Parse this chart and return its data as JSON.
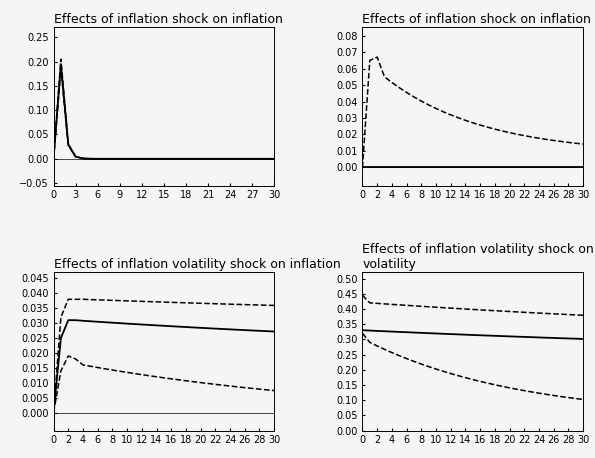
{
  "titles": [
    "Effects of inflation shock on inflation",
    "Effects of inflation shock on inflation volatili...",
    "Effects of inflation volatility shock on inflation",
    "Effects of inflation volatility shock on inflati-\nvolatility"
  ],
  "n_steps": 31,
  "subplot1": {
    "ylim": [
      -0.055,
      0.27
    ],
    "yticks": [
      -0.05,
      0,
      0.05,
      0.1,
      0.15,
      0.2,
      0.25
    ],
    "xticks": [
      0,
      3,
      6,
      9,
      12,
      15,
      18,
      21,
      24,
      27,
      30
    ]
  },
  "subplot2": {
    "ylim": [
      -0.011,
      0.085
    ],
    "yticks": [
      0,
      0.01,
      0.02,
      0.03,
      0.04,
      0.05,
      0.06,
      0.07,
      0.08
    ],
    "xticks": [
      0,
      2,
      4,
      6,
      8,
      10,
      12,
      14,
      16,
      18,
      20,
      22,
      24,
      26,
      28,
      30
    ]
  },
  "subplot3": {
    "ylim": [
      -0.006,
      0.047
    ],
    "yticks": [
      0,
      0.005,
      0.01,
      0.015,
      0.02,
      0.025,
      0.03,
      0.035,
      0.04,
      0.045
    ],
    "xticks": [
      0,
      2,
      4,
      6,
      8,
      10,
      12,
      14,
      16,
      18,
      20,
      22,
      24,
      26,
      28,
      30
    ]
  },
  "subplot4": {
    "ylim": [
      0,
      0.52
    ],
    "yticks": [
      0,
      0.05,
      0.1,
      0.15,
      0.2,
      0.25,
      0.3,
      0.35,
      0.4,
      0.45,
      0.5
    ],
    "xticks": [
      0,
      2,
      4,
      6,
      8,
      10,
      12,
      14,
      16,
      18,
      20,
      22,
      24,
      26,
      28,
      30
    ]
  },
  "line_color": "#000000",
  "bg_color": "#f5f5f5",
  "title_fontsize": 9.0,
  "tick_fontsize": 7.0
}
